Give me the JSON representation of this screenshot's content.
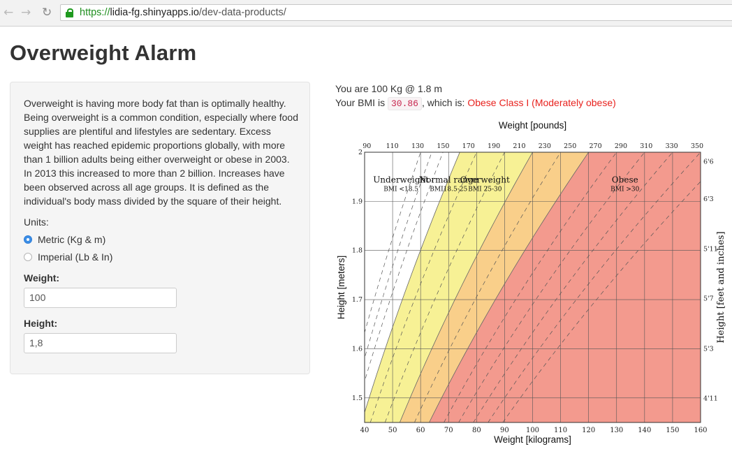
{
  "browser": {
    "nav_back_icon": "back-arrow-icon",
    "nav_forward_icon": "forward-arrow-icon",
    "reload_icon": "reload-icon",
    "url_scheme": "https://",
    "url_host": "lidia-fg.shinyapps.io",
    "url_path": "/dev-data-products/"
  },
  "page": {
    "title": "Overweight Alarm",
    "description": "Overweight is having more body fat than is optimally healthy. Being overweight is a common condition, especially where food supplies are plentiful and lifestyles are sedentary. Excess weight has reached epidemic proportions globally, with more than 1 billion adults being either overweight or obese in 2003. In 2013 this increased to more than 2 billion. Increases have been observed across all age groups. It is defined as the individual's body mass divided by the square of their height."
  },
  "form": {
    "units_label": "Units:",
    "unit_options": [
      "Metric (Kg & m)",
      "Imperial (Lb & In)"
    ],
    "selected_unit": "Metric (Kg & m)",
    "weight_label": "Weight:",
    "weight_value": "100",
    "height_label": "Height:",
    "height_value": "1,8"
  },
  "result": {
    "line1": "You are 100 Kg @ 1.8 m",
    "bmi_prefix": "Your BMI is ",
    "bmi_value": "30.86",
    "bmi_middle": ", which is: ",
    "bmi_class": "Obese Class I (Moderately obese)",
    "class_color": "#e8221e"
  },
  "chart_data": {
    "type": "area",
    "title": "Weight [pounds]",
    "xlabel": "Weight [kilograms]",
    "ylabel": "Height [meters]",
    "y2label": "Height [feet and inches]",
    "xlim": [
      40,
      160
    ],
    "ylim": [
      1.45,
      2.0
    ],
    "x_ticks": [
      40,
      50,
      60,
      70,
      80,
      90,
      100,
      110,
      120,
      130,
      140,
      150,
      160
    ],
    "y_ticks": [
      1.5,
      1.6,
      1.7,
      1.8,
      1.9,
      2
    ],
    "top_ticks": [
      90,
      110,
      130,
      150,
      170,
      190,
      210,
      230,
      250,
      270,
      290,
      310,
      330,
      350
    ],
    "right_ticks": [
      {
        "label": "4'11",
        "height_m": 1.499
      },
      {
        "label": "5'3",
        "height_m": 1.6
      },
      {
        "label": "5'7",
        "height_m": 1.702
      },
      {
        "label": "5'11",
        "height_m": 1.803
      },
      {
        "label": "6'3",
        "height_m": 1.905
      },
      {
        "label": "6'6",
        "height_m": 1.981
      }
    ],
    "bmi_boundaries": [
      18.5,
      25,
      30
    ],
    "dashed_bmi_lines": [
      15,
      16,
      17,
      20,
      22.5,
      27.5,
      32.5,
      35,
      37.5,
      40,
      42.5
    ],
    "zones": [
      {
        "name": "Underweight",
        "range": "BMI <18.5",
        "bmi_from": 0,
        "bmi_to": 18.5,
        "color": "#ffffff",
        "label_weight_kg": 53,
        "label_height_m": 1.924
      },
      {
        "name": "Normal range",
        "range": "BMI18.5-25",
        "bmi_from": 18.5,
        "bmi_to": 25,
        "color": "#f7f195",
        "label_weight_kg": 70,
        "label_height_m": 1.924
      },
      {
        "name": "Overweight",
        "range": "BMI 25-30",
        "bmi_from": 25,
        "bmi_to": 30,
        "color": "#f9cf8a",
        "label_weight_kg": 83,
        "label_height_m": 1.924
      },
      {
        "name": "Obese",
        "range": "BMI >30",
        "bmi_from": 30,
        "bmi_to": 999,
        "color": "#f39a8e",
        "label_weight_kg": 133,
        "label_height_m": 1.924
      }
    ]
  }
}
